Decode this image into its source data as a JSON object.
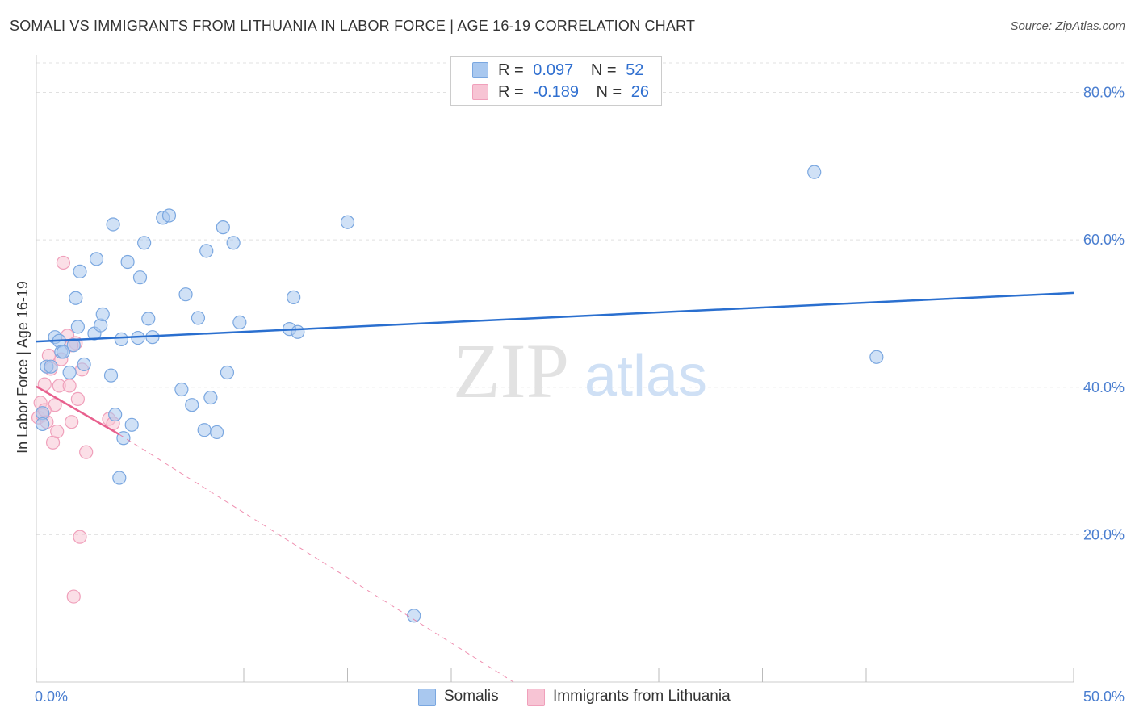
{
  "title": "SOMALI VS IMMIGRANTS FROM LITHUANIA IN LABOR FORCE | AGE 16-19 CORRELATION CHART",
  "source_label": "Source: ZipAtlas.com",
  "watermark": {
    "zip": "ZIP",
    "atlas": "atlas"
  },
  "legend_top": {
    "somalis": {
      "r_label": "R =",
      "r_value": "0.097",
      "n_label": "N =",
      "n_value": "52"
    },
    "lithuania": {
      "r_label": "R =",
      "r_value": "-0.189",
      "n_label": "N =",
      "n_value": "26"
    }
  },
  "legend_bottom": {
    "somalis": "Somalis",
    "lithuania": "Immigrants from Lithuania"
  },
  "colors": {
    "somali_fill": "#a9c8ef",
    "somali_stroke": "#7aa7e0",
    "somali_line": "#2a6fcf",
    "lith_fill": "#f7c4d4",
    "lith_stroke": "#f0a0bb",
    "lith_line": "#e8608e",
    "axis_text": "#4a7ed0",
    "grid": "#e0e0e0"
  },
  "chart_data": {
    "type": "scatter",
    "title": "SOMALI VS IMMIGRANTS FROM LITHUANIA IN LABOR FORCE | AGE 16-19 CORRELATION CHART",
    "xlabel": "",
    "ylabel": "In Labor Force | Age 16-19",
    "xlim": [
      0,
      50
    ],
    "ylim": [
      0,
      84
    ],
    "x_tick_labels": [
      "0.0%",
      "50.0%"
    ],
    "y_ticks": [
      20,
      40,
      60,
      80
    ],
    "y_tick_labels": [
      "20.0%",
      "40.0%",
      "60.0%",
      "80.0%"
    ],
    "grid": true,
    "legend_position": "top-center",
    "series": [
      {
        "name": "Somalis",
        "r": 0.097,
        "n": 52,
        "trend": {
          "x": [
            0,
            50
          ],
          "y": [
            46.2,
            52.8
          ],
          "style": "solid"
        },
        "points": [
          [
            0.3,
            36.5
          ],
          [
            0.3,
            35.0
          ],
          [
            0.5,
            42.8
          ],
          [
            0.7,
            42.8
          ],
          [
            0.9,
            46.8
          ],
          [
            1.1,
            46.3
          ],
          [
            1.2,
            44.8
          ],
          [
            1.3,
            44.8
          ],
          [
            1.6,
            42.0
          ],
          [
            1.8,
            45.7
          ],
          [
            1.9,
            52.1
          ],
          [
            2.0,
            48.2
          ],
          [
            2.1,
            55.7
          ],
          [
            2.3,
            43.1
          ],
          [
            2.8,
            47.3
          ],
          [
            2.9,
            57.4
          ],
          [
            3.1,
            48.4
          ],
          [
            3.2,
            49.9
          ],
          [
            3.6,
            41.6
          ],
          [
            3.7,
            62.1
          ],
          [
            3.8,
            36.3
          ],
          [
            4.1,
            46.5
          ],
          [
            4.2,
            33.1
          ],
          [
            4.4,
            57.0
          ],
          [
            4.6,
            34.9
          ],
          [
            4.9,
            46.7
          ],
          [
            5.0,
            54.9
          ],
          [
            5.2,
            59.6
          ],
          [
            5.4,
            49.3
          ],
          [
            5.6,
            46.8
          ],
          [
            6.1,
            63.0
          ],
          [
            6.4,
            63.3
          ],
          [
            7.0,
            39.7
          ],
          [
            7.2,
            52.6
          ],
          [
            7.5,
            37.6
          ],
          [
            7.8,
            49.4
          ],
          [
            8.1,
            34.2
          ],
          [
            8.2,
            58.5
          ],
          [
            8.4,
            38.6
          ],
          [
            8.7,
            33.9
          ],
          [
            9.0,
            61.7
          ],
          [
            9.2,
            42.0
          ],
          [
            9.5,
            59.6
          ],
          [
            9.8,
            48.8
          ],
          [
            12.2,
            47.9
          ],
          [
            12.4,
            52.2
          ],
          [
            12.6,
            47.5
          ],
          [
            15.0,
            62.4
          ],
          [
            18.2,
            9.0
          ],
          [
            37.5,
            69.2
          ],
          [
            40.5,
            44.1
          ],
          [
            4.0,
            27.7
          ]
        ]
      },
      {
        "name": "Immigrants from Lithuania",
        "r": -0.189,
        "n": 26,
        "trend": {
          "x": [
            0,
            4.0
          ],
          "y": [
            40.1,
            33.6
          ],
          "style": "solid",
          "extension": {
            "x": [
              4.0,
              23.0
            ],
            "y": [
              33.6,
              0.0
            ],
            "style": "dashed"
          }
        },
        "points": [
          [
            0.1,
            35.9
          ],
          [
            0.2,
            37.9
          ],
          [
            0.3,
            36.2
          ],
          [
            0.4,
            40.4
          ],
          [
            0.5,
            35.3
          ],
          [
            0.6,
            44.3
          ],
          [
            0.7,
            42.5
          ],
          [
            0.8,
            32.5
          ],
          [
            0.9,
            37.6
          ],
          [
            1.0,
            34.0
          ],
          [
            1.1,
            40.2
          ],
          [
            1.2,
            43.8
          ],
          [
            1.3,
            56.9
          ],
          [
            1.5,
            47.0
          ],
          [
            1.6,
            40.2
          ],
          [
            1.7,
            35.3
          ],
          [
            1.8,
            11.6
          ],
          [
            1.9,
            46.0
          ],
          [
            2.0,
            38.4
          ],
          [
            2.1,
            19.7
          ],
          [
            2.2,
            42.4
          ],
          [
            2.4,
            31.2
          ],
          [
            3.5,
            35.7
          ],
          [
            3.7,
            35.1
          ],
          [
            1.7,
            45.7
          ],
          [
            0.4,
            36.9
          ]
        ]
      }
    ]
  }
}
